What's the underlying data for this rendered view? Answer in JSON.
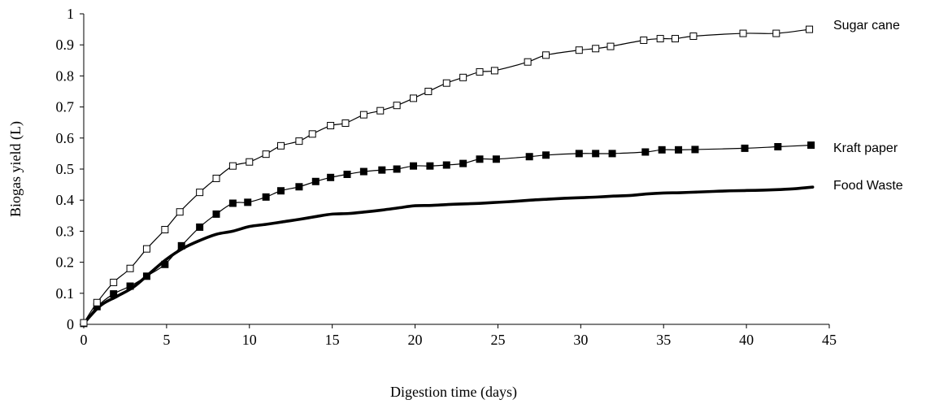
{
  "chart_data": {
    "type": "line",
    "title": "",
    "xlabel": "Digestion time (days)",
    "ylabel": "Biogas yield (L)",
    "xlim": [
      0,
      45
    ],
    "ylim": [
      0,
      1
    ],
    "xticks": [
      0,
      5,
      10,
      15,
      20,
      25,
      30,
      35,
      40,
      45
    ],
    "yticks": [
      0,
      0.1,
      0.2,
      0.3,
      0.4,
      0.5,
      0.6,
      0.7,
      0.8,
      0.9,
      1
    ],
    "ytick_labels": [
      "0",
      "0.1",
      "0.2",
      "0.3",
      "0.4",
      "0.5",
      "0.6",
      "0.7",
      "0.8",
      "0.9",
      "1"
    ],
    "grid": false,
    "legend": "end-of-line labels",
    "series": [
      {
        "name": "Sugar cane",
        "marker": "open-square",
        "color": "#000000",
        "x": [
          0,
          0.8,
          1.8,
          2.8,
          3.8,
          4.9,
          5.8,
          7.0,
          8.0,
          9.0,
          10.0,
          11.0,
          11.9,
          13.0,
          13.8,
          14.9,
          15.8,
          16.9,
          17.9,
          18.9,
          19.9,
          20.8,
          21.9,
          22.9,
          23.9,
          24.8,
          26.8,
          27.9,
          29.9,
          30.9,
          31.8,
          33.8,
          34.8,
          35.7,
          36.8,
          39.8,
          41.8,
          43.8
        ],
        "y": [
          0.005,
          0.07,
          0.135,
          0.18,
          0.243,
          0.305,
          0.362,
          0.425,
          0.47,
          0.51,
          0.523,
          0.548,
          0.575,
          0.59,
          0.613,
          0.64,
          0.648,
          0.675,
          0.688,
          0.705,
          0.728,
          0.75,
          0.777,
          0.795,
          0.813,
          0.817,
          0.845,
          0.867,
          0.883,
          0.888,
          0.895,
          0.915,
          0.92,
          0.92,
          0.928,
          0.937,
          0.937,
          0.95
        ]
      },
      {
        "name": "Kraft paper",
        "marker": "filled-square",
        "color": "#000000",
        "x": [
          0,
          0.8,
          1.8,
          2.8,
          3.8,
          4.9,
          5.9,
          7.0,
          8.0,
          9.0,
          9.9,
          11.0,
          11.9,
          13.0,
          14.0,
          14.9,
          15.9,
          16.9,
          18.0,
          18.9,
          19.9,
          20.9,
          21.9,
          22.9,
          23.9,
          24.9,
          26.9,
          27.9,
          29.9,
          30.9,
          31.9,
          33.9,
          34.9,
          35.9,
          36.9,
          39.9,
          41.9,
          43.9
        ],
        "y": [
          0.003,
          0.057,
          0.098,
          0.123,
          0.155,
          0.193,
          0.253,
          0.313,
          0.355,
          0.39,
          0.393,
          0.41,
          0.43,
          0.443,
          0.46,
          0.473,
          0.483,
          0.492,
          0.497,
          0.5,
          0.51,
          0.51,
          0.513,
          0.518,
          0.532,
          0.532,
          0.54,
          0.545,
          0.55,
          0.55,
          0.55,
          0.555,
          0.562,
          0.562,
          0.563,
          0.567,
          0.572,
          0.577
        ]
      },
      {
        "name": "Food Waste",
        "marker": "none",
        "color": "#000000",
        "x": [
          0,
          1,
          2,
          3,
          4,
          5,
          6,
          7,
          8,
          9,
          10,
          11,
          12,
          13,
          14,
          15,
          16,
          17,
          18,
          19,
          20,
          21,
          22,
          23,
          24,
          25,
          26,
          27,
          28,
          29,
          30,
          31,
          32,
          33,
          34,
          35,
          36,
          37,
          38,
          39,
          40,
          41,
          42,
          43,
          44
        ],
        "y": [
          0.003,
          0.06,
          0.09,
          0.12,
          0.165,
          0.21,
          0.245,
          0.27,
          0.29,
          0.3,
          0.315,
          0.322,
          0.33,
          0.338,
          0.347,
          0.355,
          0.357,
          0.362,
          0.368,
          0.375,
          0.382,
          0.383,
          0.386,
          0.388,
          0.39,
          0.393,
          0.396,
          0.4,
          0.403,
          0.406,
          0.408,
          0.41,
          0.413,
          0.415,
          0.42,
          0.423,
          0.424,
          0.426,
          0.428,
          0.43,
          0.431,
          0.432,
          0.434,
          0.437,
          0.442
        ]
      }
    ]
  }
}
